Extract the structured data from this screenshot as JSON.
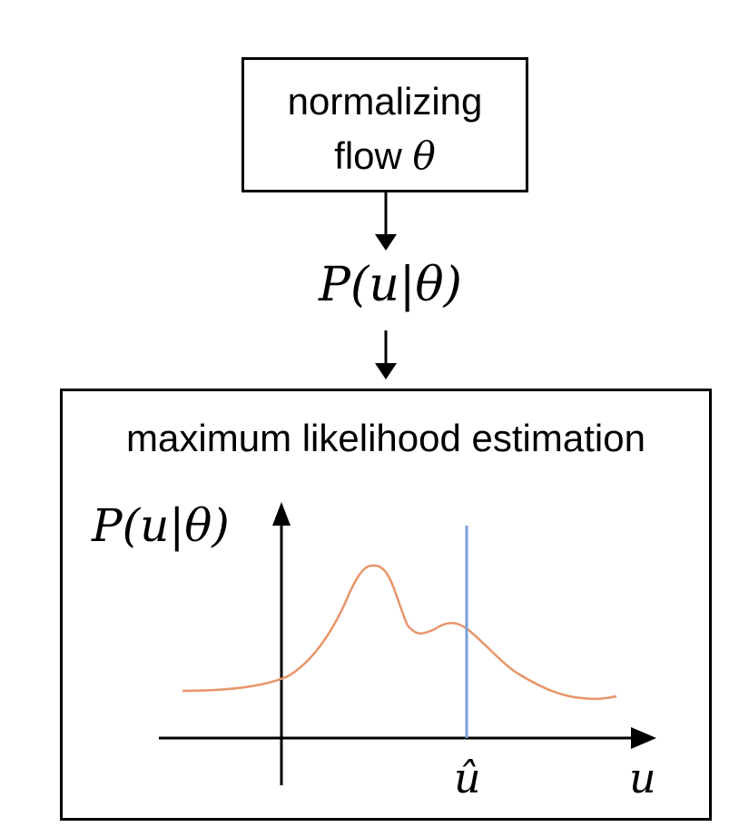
{
  "top_box": {
    "line1": "normalizing",
    "line2_prefix": "flow ",
    "line2_symbol": "θ"
  },
  "middle_label": "P(u|θ)",
  "bottom_box": {
    "title": "maximum likelihood estimation",
    "y_axis_label": "P(u|θ)",
    "x_axis_label": "u",
    "marker_label": "û"
  },
  "colors": {
    "curve": "#e8956a",
    "marker_line": "#7b9fd8",
    "stroke": "#000000"
  }
}
